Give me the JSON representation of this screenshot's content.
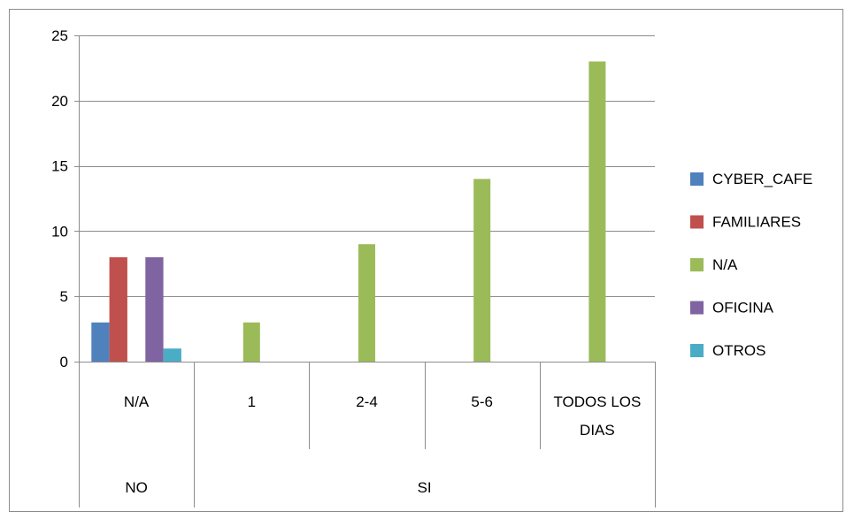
{
  "chart_data": {
    "type": "bar",
    "title": "",
    "xlabel": "",
    "ylabel": "",
    "ylim": [
      0,
      25
    ],
    "yticks": [
      0,
      5,
      10,
      15,
      20,
      25
    ],
    "grid": true,
    "legend_position": "right",
    "categories": [
      {
        "label": "N/A",
        "group": "NO"
      },
      {
        "label": "1",
        "group": "SI"
      },
      {
        "label": "2-4",
        "group": "SI"
      },
      {
        "label": "5-6",
        "group": "SI"
      },
      {
        "label": "TODOS LOS DIAS",
        "label_lines": [
          "TODOS LOS",
          "DIAS"
        ],
        "group": "SI"
      }
    ],
    "groups": [
      "NO",
      "SI"
    ],
    "series": [
      {
        "name": "CYBER_CAFE",
        "color": "#4f81bd",
        "values": [
          3,
          null,
          null,
          null,
          null
        ]
      },
      {
        "name": "FAMILIARES",
        "color": "#c0504d",
        "values": [
          8,
          null,
          null,
          null,
          null
        ]
      },
      {
        "name": "N/A",
        "color": "#9bbb59",
        "values": [
          null,
          3,
          9,
          14,
          23
        ]
      },
      {
        "name": "OFICINA",
        "color": "#8064a2",
        "values": [
          8,
          null,
          null,
          null,
          null
        ]
      },
      {
        "name": "OTROS",
        "color": "#4bacc6",
        "values": [
          1,
          null,
          null,
          null,
          null
        ]
      }
    ]
  }
}
